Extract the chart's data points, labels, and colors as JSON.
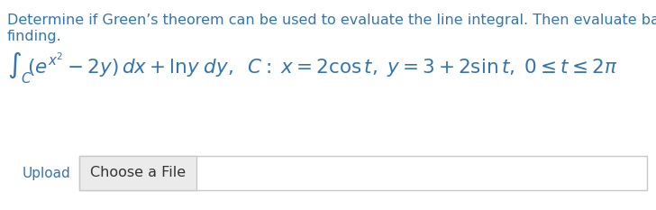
{
  "line1": "Determine if Green’s theorem can be used to evaluate the line integral. Then evaluate based on your",
  "line2": "finding.",
  "text_color": "#3375b0",
  "upload_label": "Upload",
  "button_label": "Choose a File",
  "bg_color": "#ffffff",
  "box_bg": "#ebebeb",
  "box_border": "#c8c8c8",
  "outer_bg": "#ffffff",
  "upload_color": "#3375b0",
  "font_size_body": 11.5,
  "font_size_math": 15.5,
  "font_size_upload": 11.0,
  "font_size_button": 11.5
}
